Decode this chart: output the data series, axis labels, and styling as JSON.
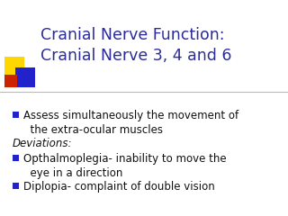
{
  "title_line1": "Cranial Nerve Function:",
  "title_line2": "Cranial Nerve 3, 4 and 6",
  "title_color": "#2B2B9B",
  "bg_color": "#FFFFFF",
  "bullet_color": "#2222CC",
  "body_color": "#111111",
  "italic_color": "#111111",
  "title_fontsize": 12.5,
  "body_fontsize": 8.5,
  "italic_fontsize": 8.5,
  "bullet1": "Assess simultaneously the movement of\n  the extra-ocular muscles",
  "italic_text": "Deviations:",
  "bullet2": "Opthalmoplegia- inability to move the\n  eye in a direction",
  "bullet3": "Diplopia- complaint of double vision",
  "decor": {
    "yellow": "#FFD700",
    "blue": "#2222CC",
    "red": "#CC2200",
    "line_color": "#BBBBBB"
  }
}
